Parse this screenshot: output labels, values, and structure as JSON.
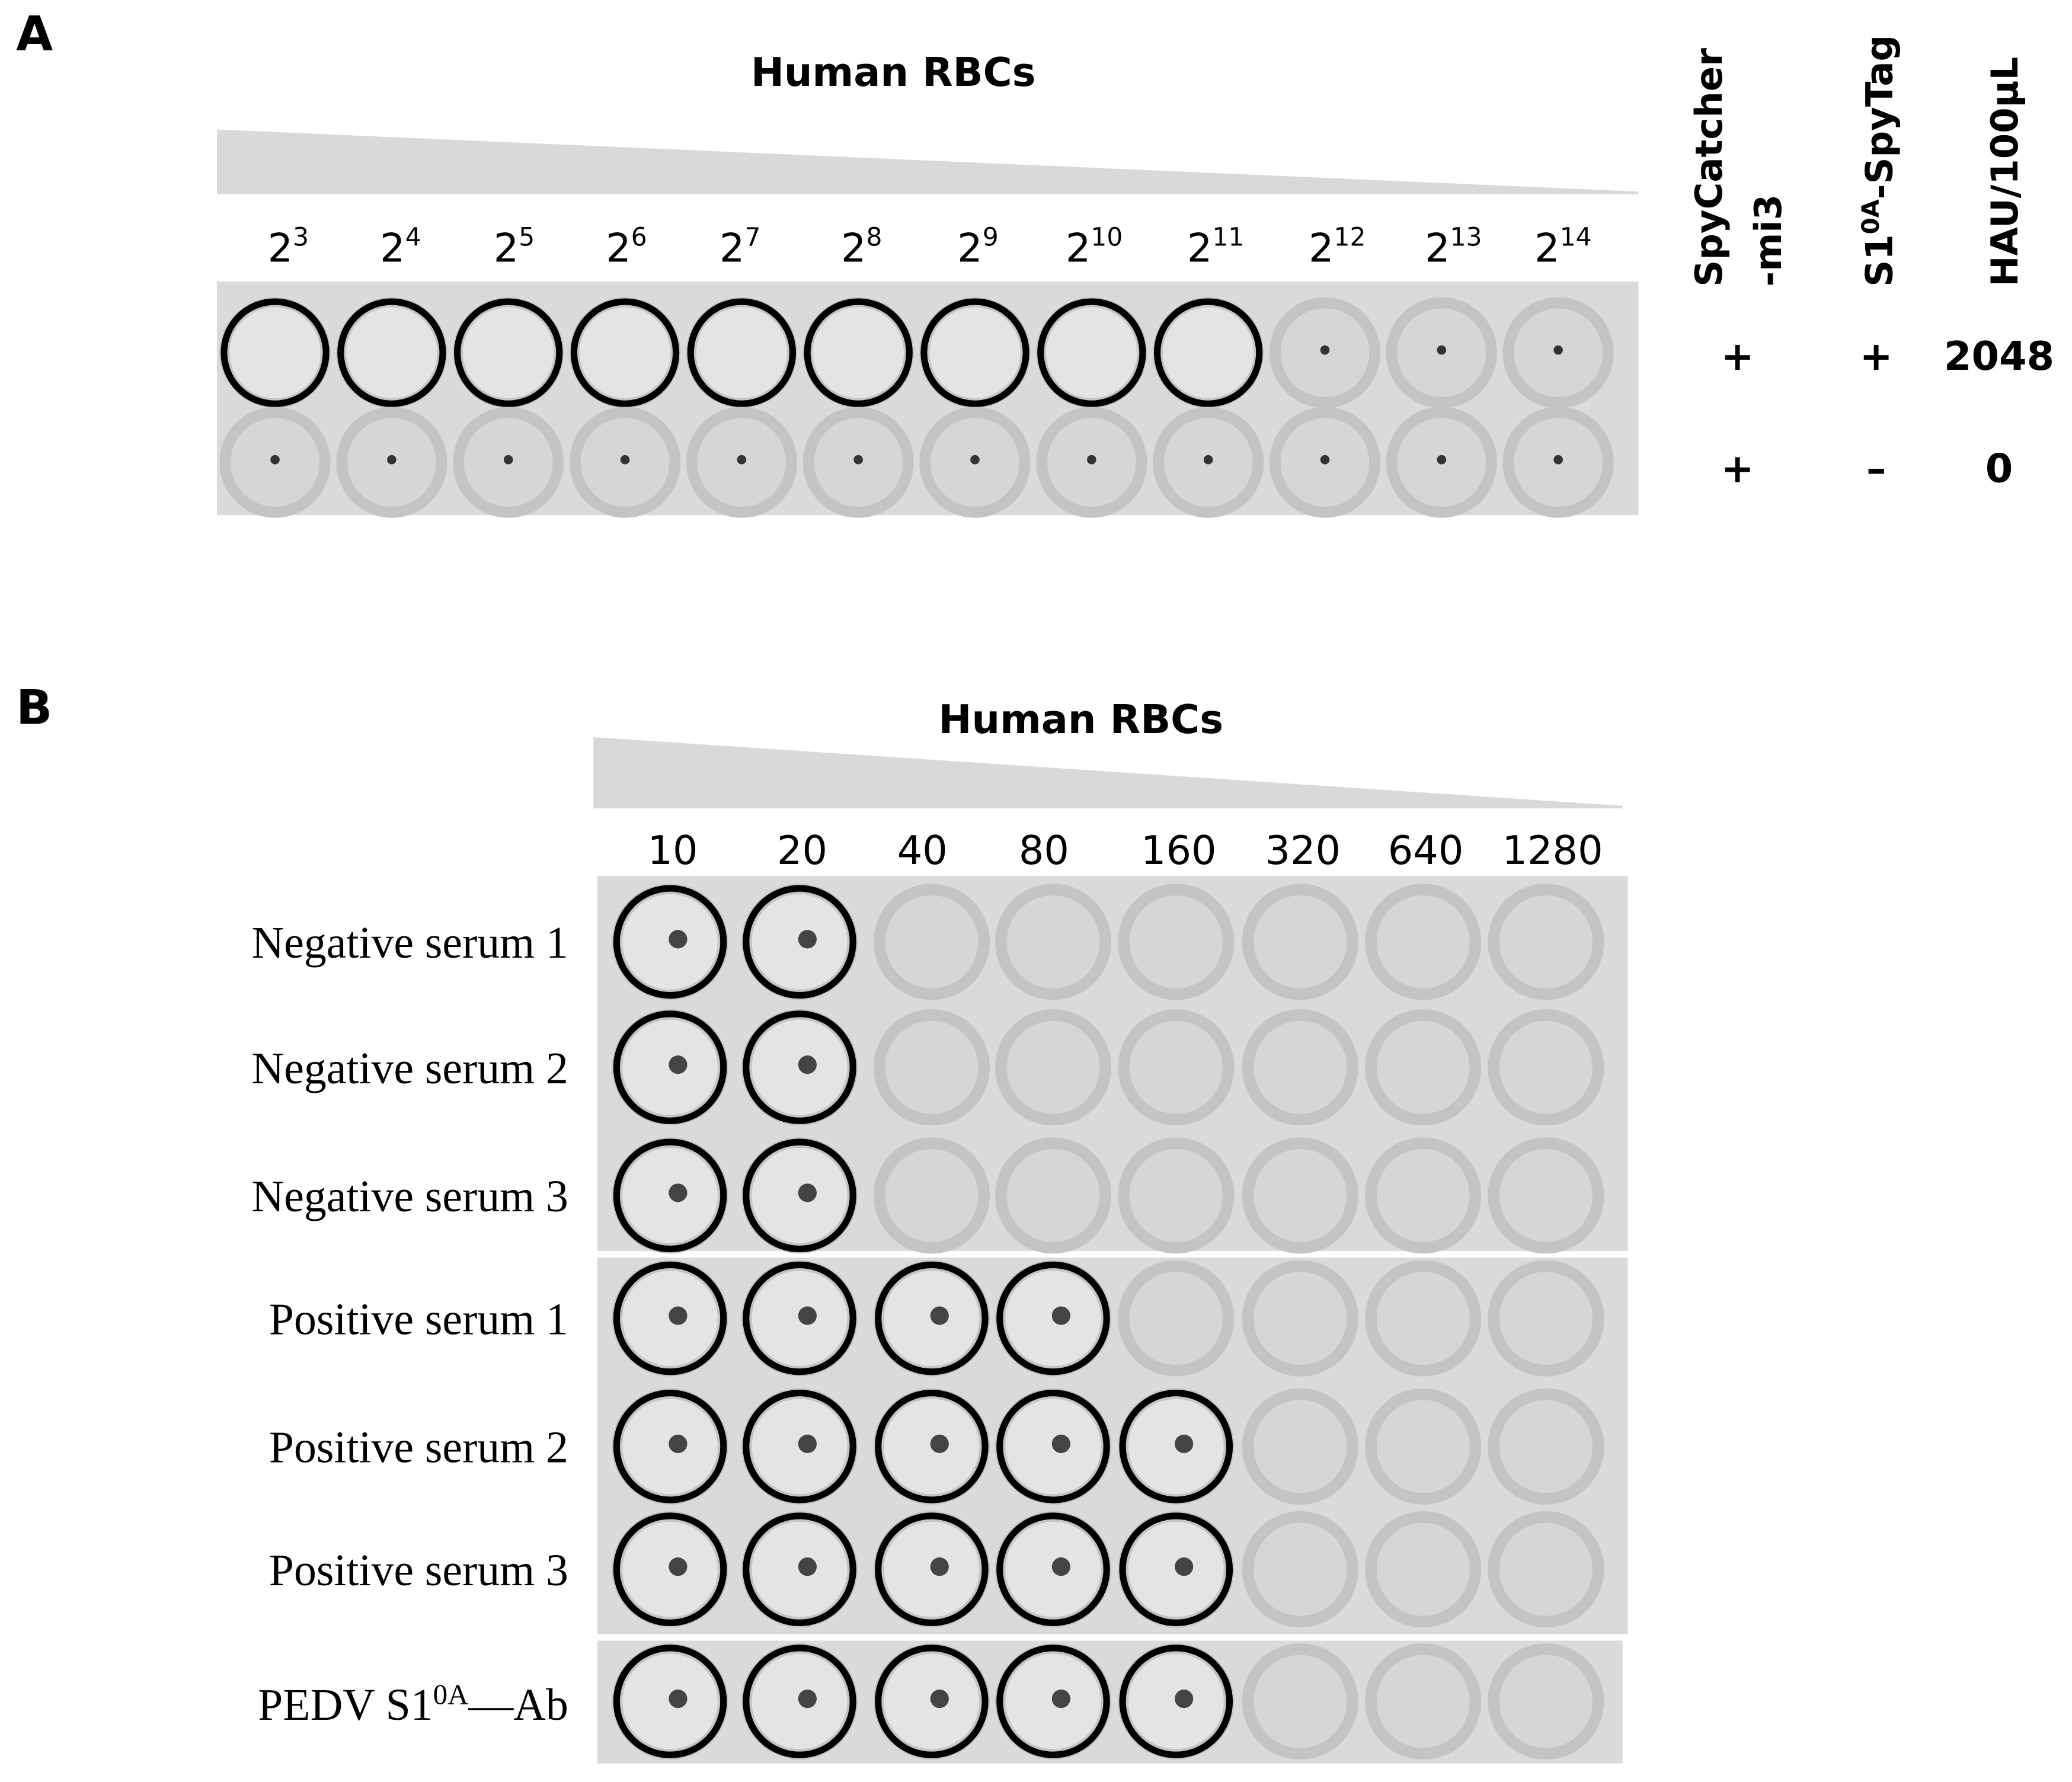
{
  "panel_a": {
    "label": "A",
    "title": "Human RBCs",
    "dilutions": [
      {
        "base": "2",
        "exp": "3"
      },
      {
        "base": "2",
        "exp": "4"
      },
      {
        "base": "2",
        "exp": "5"
      },
      {
        "base": "2",
        "exp": "6"
      },
      {
        "base": "2",
        "exp": "7"
      },
      {
        "base": "2",
        "exp": "8"
      },
      {
        "base": "2",
        "exp": "9"
      },
      {
        "base": "2",
        "exp": "10"
      },
      {
        "base": "2",
        "exp": "11"
      },
      {
        "base": "2",
        "exp": "12"
      },
      {
        "base": "2",
        "exp": "13"
      },
      {
        "base": "2",
        "exp": "14"
      }
    ],
    "headers": {
      "spycatcher": {
        "line1": "SpyCatcher",
        "line2": "-mi3"
      },
      "spytag": {
        "prefix": "S1",
        "sup": "0A",
        "suffix": "-SpyTag"
      },
      "hau": "HAU/100μL"
    },
    "rows": [
      [
        "+",
        "+",
        "2048"
      ],
      [
        "+",
        "–",
        "0"
      ]
    ]
  },
  "panel_b": {
    "label": "B",
    "title": "Human RBCs",
    "dilutions": [
      "10",
      "20",
      "40",
      "80",
      "160",
      "320",
      "640",
      "1280"
    ],
    "rows": [
      "Negative serum 1",
      "Negative serum 2",
      "Negative serum 3",
      "Positive serum 1",
      "Positive serum 2",
      "Positive serum 3"
    ],
    "control": {
      "prefix": "PEDV S1",
      "sup": "0A",
      "suffix": "—Ab"
    }
  }
}
